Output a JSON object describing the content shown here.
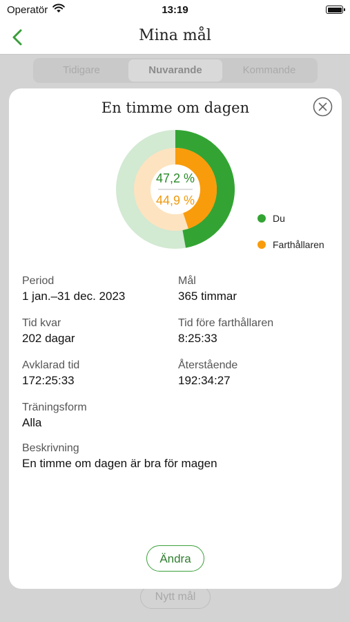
{
  "status_bar": {
    "carrier": "Operatör",
    "time": "13:19"
  },
  "nav": {
    "title": "Mina mål"
  },
  "tabs": [
    {
      "label": "Tidigare"
    },
    {
      "label": "Nuvarande",
      "active": true
    },
    {
      "label": "Kommande"
    }
  ],
  "background_button": "Nytt mål",
  "modal": {
    "title": "En timme om dagen",
    "progress": {
      "you_text": "47,2 %",
      "you_value": 47.2,
      "pacer_text": "44,9 %",
      "pacer_value": 44.9
    },
    "legend": {
      "you": "Du",
      "pacer": "Farthållaren"
    },
    "colors": {
      "you": "#33a433",
      "you_track": "#d2e9d2",
      "pacer": "#f89c0c",
      "pacer_track": "#fde3c0"
    },
    "fields": {
      "period": {
        "label": "Period",
        "value": "1 jan.–31 dec. 2023"
      },
      "goal": {
        "label": "Mål",
        "value": "365 timmar"
      },
      "time_left": {
        "label": "Tid kvar",
        "value": "202 dagar"
      },
      "time_before_pacer": {
        "label": "Tid före farthållaren",
        "value": "8:25:33"
      },
      "completed": {
        "label": "Avklarad tid",
        "value": "172:25:33"
      },
      "remaining": {
        "label": "Återstående",
        "value": "192:34:27"
      },
      "training_type": {
        "label": "Träningsform",
        "value": "Alla"
      },
      "description": {
        "label": "Beskrivning",
        "value": "En timme om dagen är bra för magen"
      }
    },
    "edit_button": "Ändra"
  }
}
